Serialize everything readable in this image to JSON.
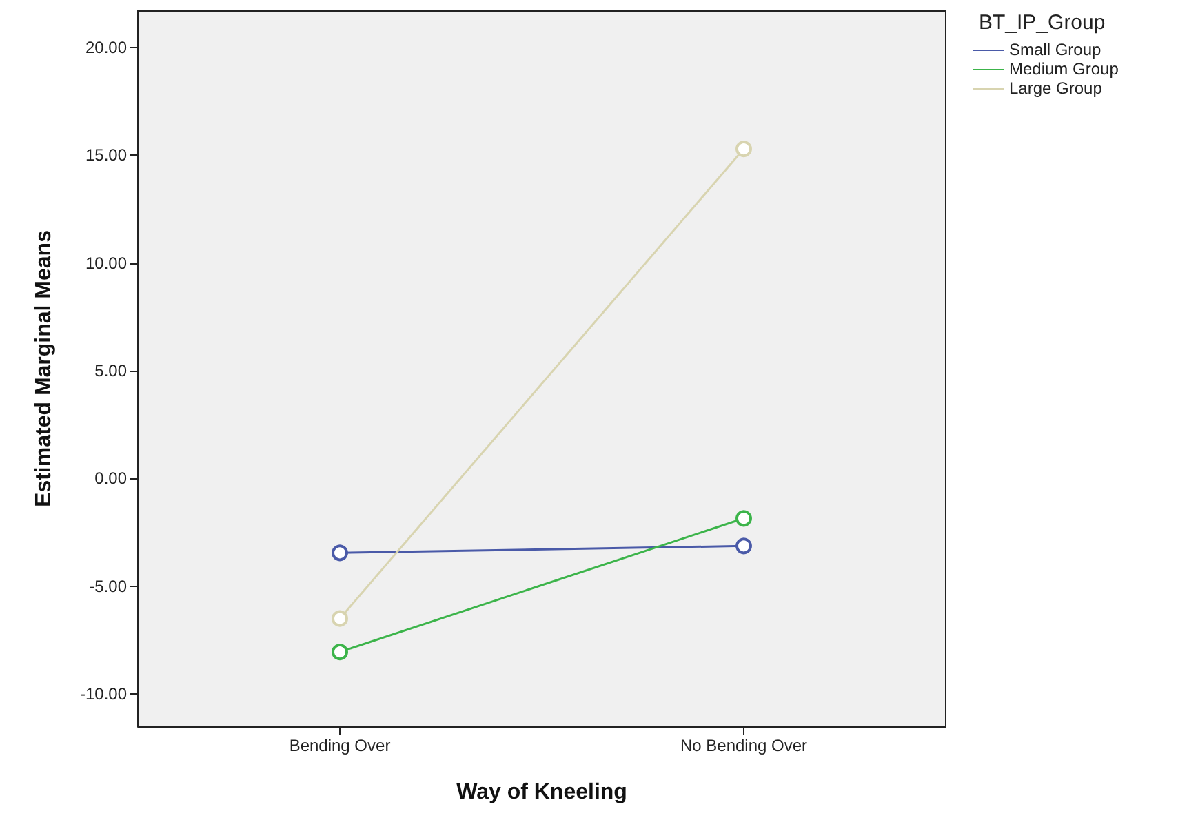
{
  "chart_data": {
    "type": "line",
    "xlabel": "Way of Kneeling",
    "ylabel": "Estimated Marginal Means",
    "legend_title": "BT_IP_Group",
    "categories": [
      "Bending Over",
      "No Bending Over"
    ],
    "series": [
      {
        "name": "Small Group",
        "color": "#4a5aa8",
        "values": [
          -3.45,
          -3.13
        ]
      },
      {
        "name": "Medium Group",
        "color": "#3cb44a",
        "values": [
          -8.05,
          -1.85
        ]
      },
      {
        "name": "Large Group",
        "color": "#d8d4b0",
        "values": [
          -6.5,
          15.3
        ]
      }
    ],
    "ylim": [
      -11.5,
      21.7
    ],
    "yticks": [
      {
        "value": -10,
        "label": "-10.00"
      },
      {
        "value": -5,
        "label": "-5.00"
      },
      {
        "value": 0,
        "label": "0.00"
      },
      {
        "value": 5,
        "label": "5.00"
      },
      {
        "value": 10,
        "label": "10.00"
      },
      {
        "value": 15,
        "label": "15.00"
      },
      {
        "value": 20,
        "label": "20.00"
      }
    ],
    "grid": false,
    "legend": "top right",
    "marker": "circle",
    "line_style": "solid"
  }
}
